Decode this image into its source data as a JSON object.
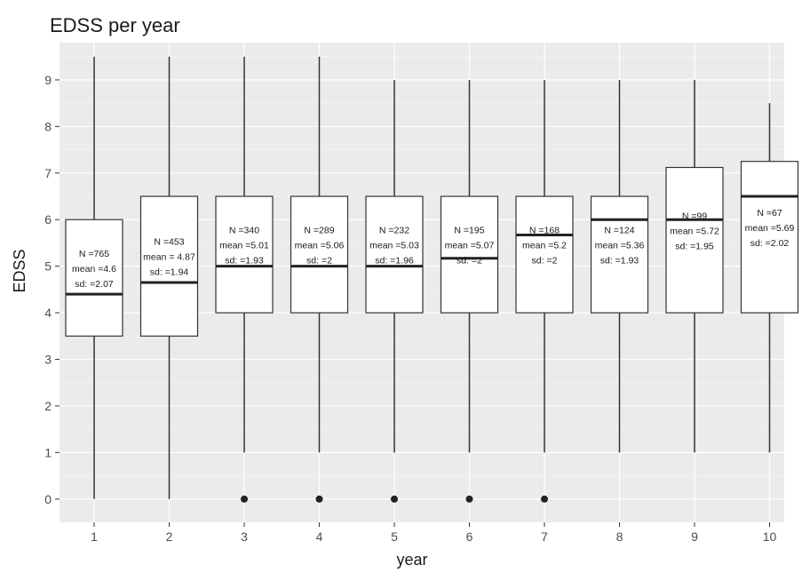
{
  "chart_data": {
    "type": "boxplot",
    "title": "EDSS per year",
    "xlabel": "year",
    "ylabel": "EDSS",
    "categories": [
      "1",
      "2",
      "3",
      "4",
      "5",
      "6",
      "7",
      "8",
      "9",
      "10"
    ],
    "ylim": [
      -0.5,
      9.8
    ],
    "yticks": [
      0,
      1,
      2,
      3,
      4,
      5,
      6,
      7,
      8,
      9
    ],
    "grid": true,
    "boxes": [
      {
        "x": "1",
        "lower_whisker": 0,
        "q1": 3.5,
        "median": 4.4,
        "q3": 6.0,
        "upper_whisker": 9.5,
        "outliers": [],
        "label": {
          "n": "N =765",
          "mean": "mean =4.6",
          "sd": "sd: =2.07"
        }
      },
      {
        "x": "2",
        "lower_whisker": 0,
        "q1": 3.5,
        "median": 4.65,
        "q3": 6.5,
        "upper_whisker": 9.5,
        "outliers": [],
        "label": {
          "n": "N =453",
          "mean": "mean = 4.87",
          "sd": "sd: =1.94"
        }
      },
      {
        "x": "3",
        "lower_whisker": 1,
        "q1": 4.0,
        "median": 5.0,
        "q3": 6.5,
        "upper_whisker": 9.5,
        "outliers": [
          0
        ],
        "label": {
          "n": "N =340",
          "mean": "mean =5.01",
          "sd": "sd: =1.93"
        }
      },
      {
        "x": "4",
        "lower_whisker": 1,
        "q1": 4.0,
        "median": 5.0,
        "q3": 6.5,
        "upper_whisker": 9.5,
        "outliers": [
          0
        ],
        "label": {
          "n": "N =289",
          "mean": "mean =5.06",
          "sd": "sd: =2"
        }
      },
      {
        "x": "5",
        "lower_whisker": 1,
        "q1": 4.0,
        "median": 5.0,
        "q3": 6.5,
        "upper_whisker": 9.0,
        "outliers": [
          0
        ],
        "label": {
          "n": "N =232",
          "mean": "mean =5.03",
          "sd": "sd: =1.96"
        }
      },
      {
        "x": "6",
        "lower_whisker": 1,
        "q1": 4.0,
        "median": 5.17,
        "q3": 6.5,
        "upper_whisker": 9.0,
        "outliers": [
          0
        ],
        "label": {
          "n": "N =195",
          "mean": "mean =5.07",
          "sd": "sd: =2"
        }
      },
      {
        "x": "7",
        "lower_whisker": 1,
        "q1": 4.0,
        "median": 5.67,
        "q3": 6.5,
        "upper_whisker": 9.0,
        "outliers": [
          0
        ],
        "label": {
          "n": "N =168",
          "mean": "mean =5.2",
          "sd": "sd: =2"
        }
      },
      {
        "x": "8",
        "lower_whisker": 1,
        "q1": 4.0,
        "median": 6.0,
        "q3": 6.5,
        "upper_whisker": 9.0,
        "outliers": [],
        "label": {
          "n": "N =124",
          "mean": "mean =5.36",
          "sd": "sd: =1.93"
        }
      },
      {
        "x": "9",
        "lower_whisker": 1,
        "q1": 4.0,
        "median": 6.0,
        "q3": 7.12,
        "upper_whisker": 9.0,
        "outliers": [],
        "label": {
          "n": "N =99",
          "mean": "mean =5.72",
          "sd": "sd: =1.95"
        }
      },
      {
        "x": "10",
        "lower_whisker": 1,
        "q1": 4.0,
        "median": 6.5,
        "q3": 7.25,
        "upper_whisker": 8.5,
        "outliers": [],
        "label": {
          "n": "N =67",
          "mean": "mean =5.69",
          "sd": "sd: =2.02"
        }
      }
    ],
    "colors": {
      "panel_background": "#ebebeb",
      "grid_major": "#ffffff",
      "box_fill": "#ffffff",
      "box_stroke": "#333333",
      "median": "#222222",
      "outlier": "#222222",
      "text": "#1a1a1a",
      "tick_text": "#4d4d4d"
    }
  }
}
